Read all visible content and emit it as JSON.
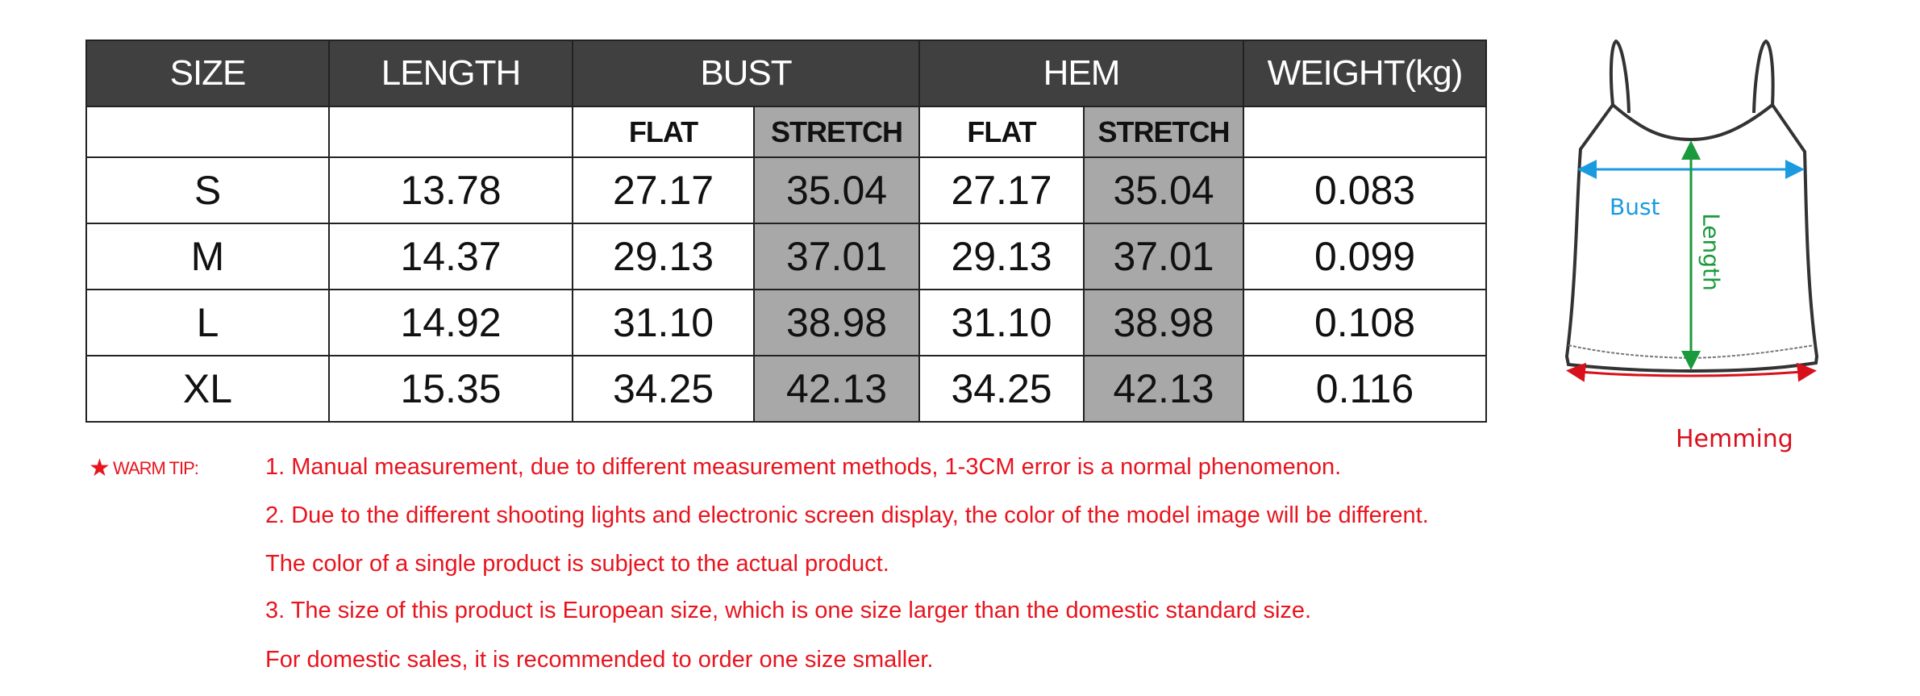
{
  "table": {
    "headers": [
      "SIZE",
      "LENGTH",
      "BUST",
      "HEM",
      "WEIGHT(kg)"
    ],
    "subheaders": {
      "flat": "FLAT",
      "stretch": "STRETCH"
    },
    "rows": [
      {
        "size": "S",
        "length": "13.78",
        "bust_flat": "27.17",
        "bust_stretch": "35.04",
        "hem_flat": "27.17",
        "hem_stretch": "35.04",
        "weight": "0.083"
      },
      {
        "size": "M",
        "length": "14.37",
        "bust_flat": "29.13",
        "bust_stretch": "37.01",
        "hem_flat": "29.13",
        "hem_stretch": "37.01",
        "weight": "0.099"
      },
      {
        "size": "L",
        "length": "14.92",
        "bust_flat": "31.10",
        "bust_stretch": "38.98",
        "hem_flat": "31.10",
        "hem_stretch": "38.98",
        "weight": "0.108"
      },
      {
        "size": "XL",
        "length": "15.35",
        "bust_flat": "34.25",
        "bust_stretch": "42.13",
        "hem_flat": "34.25",
        "hem_stretch": "42.13",
        "weight": "0.116"
      }
    ]
  },
  "diagram": {
    "bust_label": "Bust",
    "length_label": "Length",
    "hem_label": "Hemming",
    "colors": {
      "bust": "#1a9be0",
      "length": "#1a9a3c",
      "hem": "#d8101c"
    }
  },
  "tips": {
    "star": "★",
    "label": "WARM TIP:",
    "lines": [
      "1. Manual measurement, due to different measurement methods, 1-3CM error is a normal phenomenon.",
      "2. Due to the different shooting lights and electronic screen display, the  color of the model image will be different.",
      "The color of a single product is subject to the actual product.",
      "3. The size of this product is European size, which is one size larger than the domestic standard size.",
      "For domestic sales, it is recommended to order one size smaller."
    ],
    "color": "#e8141e"
  }
}
